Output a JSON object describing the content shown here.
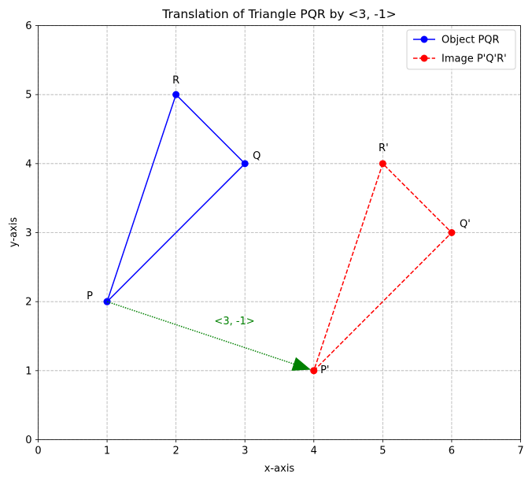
{
  "chart_data": {
    "type": "line",
    "title": "Translation of Triangle PQR by <3, -1>",
    "xlabel": "x-axis",
    "ylabel": "y-axis",
    "xlim": [
      0,
      7
    ],
    "ylim": [
      0,
      6
    ],
    "xticks": [
      "0",
      "1",
      "2",
      "3",
      "4",
      "5",
      "6",
      "7"
    ],
    "yticks": [
      "0",
      "1",
      "2",
      "3",
      "4",
      "5",
      "6"
    ],
    "grid": true,
    "legend_position": "top-right",
    "series": [
      {
        "name": "Object PQR",
        "color": "#0000ff",
        "style": "solid",
        "marker": "circle",
        "points": [
          {
            "label": "P",
            "x": 1,
            "y": 2
          },
          {
            "label": "Q",
            "x": 3,
            "y": 4
          },
          {
            "label": "R",
            "x": 2,
            "y": 5
          },
          {
            "label": "",
            "x": 1,
            "y": 2
          }
        ]
      },
      {
        "name": "Image P'Q'R'",
        "color": "#ff0000",
        "style": "dashed",
        "marker": "circle",
        "points": [
          {
            "label": "P'",
            "x": 4,
            "y": 1
          },
          {
            "label": "Q'",
            "x": 6,
            "y": 3
          },
          {
            "label": "R'",
            "x": 5,
            "y": 4
          },
          {
            "label": "",
            "x": 4,
            "y": 1
          }
        ]
      }
    ],
    "annotations": [
      {
        "type": "arrow",
        "text": "<3, -1>",
        "color": "#008000",
        "from": {
          "x": 1,
          "y": 2
        },
        "to": {
          "x": 4,
          "y": 1
        },
        "text_at": {
          "x": 2.85,
          "y": 1.72
        }
      }
    ]
  }
}
